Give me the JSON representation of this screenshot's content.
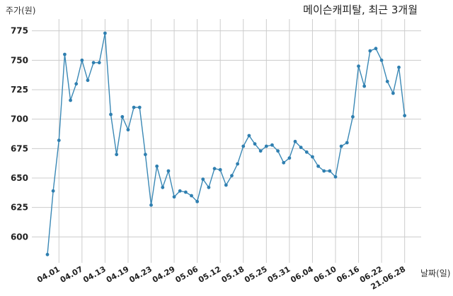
{
  "chart_data": {
    "type": "line",
    "title": "메이슨캐피탈, 최근 3개월",
    "ylabel": "주가(원)",
    "xlabel": "날짜(일)",
    "ylim": [
      578,
      785
    ],
    "yticks": [
      600,
      625,
      650,
      675,
      700,
      725,
      750,
      775
    ],
    "xtick_labels": [
      "04.01",
      "04.07",
      "04.13",
      "04.19",
      "04.23",
      "04.29",
      "05.06",
      "05.12",
      "05.18",
      "05.25",
      "05.31",
      "06.04",
      "06.10",
      "06.16",
      "06.22",
      "21.06.28"
    ],
    "xtick_positions": [
      2,
      6,
      10,
      14,
      18,
      22,
      26,
      30,
      34,
      38,
      42,
      46,
      50,
      54,
      58,
      62
    ],
    "grid": true,
    "series": [
      {
        "values": [
          585,
          639,
          682,
          755,
          716,
          730,
          750,
          733,
          748,
          748,
          773,
          704,
          670,
          702,
          691,
          710,
          710,
          670,
          627,
          660,
          642,
          656,
          634,
          639,
          638,
          635,
          630,
          649,
          642,
          658,
          657,
          644,
          652,
          662,
          677,
          686,
          679,
          673,
          677,
          678,
          673,
          663,
          667,
          681,
          676,
          672,
          668,
          660,
          656,
          656,
          651,
          677,
          680,
          702,
          745,
          728,
          758,
          760,
          750,
          732,
          722,
          744,
          703
        ]
      }
    ]
  }
}
